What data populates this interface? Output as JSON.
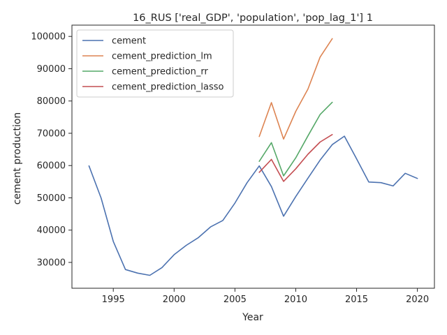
{
  "chart_data": {
    "type": "line",
    "title": "16_RUS ['real_GDP', 'population', 'pop_lag_1'] 1",
    "xlabel": "Year",
    "ylabel": "cement production",
    "xlim": [
      1991.6,
      2021.4
    ],
    "ylim": [
      22000,
      103500
    ],
    "xticks": [
      1995,
      2000,
      2005,
      2010,
      2015,
      2020
    ],
    "yticks": [
      30000,
      40000,
      50000,
      60000,
      70000,
      80000,
      90000,
      100000
    ],
    "grid": false,
    "legend_position": "top-left",
    "series": [
      {
        "name": "cement",
        "color": "#4c72b0",
        "x": [
          1993,
          1994,
          1995,
          1996,
          1997,
          1998,
          1999,
          2000,
          2001,
          2002,
          2003,
          2004,
          2005,
          2006,
          2007,
          2008,
          2009,
          2010,
          2011,
          2012,
          2013,
          2014,
          2015,
          2016,
          2017,
          2018,
          2019,
          2020
        ],
        "y": [
          59900,
          49900,
          36500,
          27800,
          26700,
          26000,
          28400,
          32400,
          35300,
          37700,
          41000,
          43000,
          48400,
          54700,
          59900,
          53500,
          44300,
          50400,
          56100,
          61700,
          66500,
          69100,
          62100,
          54900,
          54700,
          53700,
          57600,
          56000
        ]
      },
      {
        "name": "cement_prediction_lm",
        "color": "#dd8452",
        "x": [
          2007,
          2008,
          2009,
          2010,
          2011,
          2012,
          2013
        ],
        "y": [
          69000,
          79500,
          68200,
          76800,
          83700,
          93600,
          99300
        ]
      },
      {
        "name": "cement_prediction_rr",
        "color": "#55a868",
        "x": [
          2007,
          2008,
          2009,
          2010,
          2011,
          2012,
          2013
        ],
        "y": [
          61300,
          67100,
          56800,
          62400,
          69200,
          75800,
          79600
        ]
      },
      {
        "name": "cement_prediction_lasso",
        "color": "#c44e52",
        "x": [
          2007,
          2008,
          2009,
          2010,
          2011,
          2012,
          2013
        ],
        "y": [
          57900,
          61900,
          55100,
          59000,
          63500,
          67300,
          69600
        ]
      }
    ]
  }
}
